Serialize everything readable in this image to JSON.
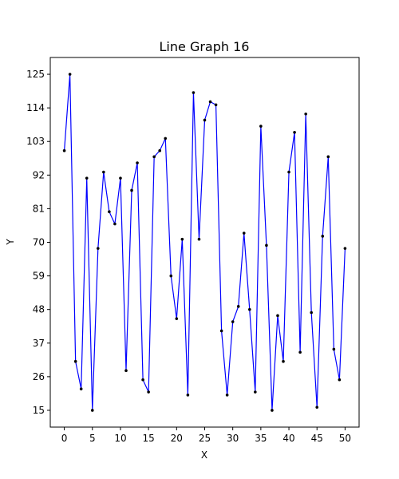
{
  "chart_data": {
    "type": "line",
    "title": "Line Graph 16",
    "xlabel": "X",
    "ylabel": "Y",
    "xlim": [
      -2.5,
      52.5
    ],
    "ylim": [
      9.5,
      130.5
    ],
    "x_ticks": [
      0,
      5,
      10,
      15,
      20,
      25,
      30,
      35,
      40,
      45,
      50
    ],
    "y_ticks": [
      15,
      26,
      37,
      48,
      59,
      70,
      81,
      92,
      103,
      114,
      125
    ],
    "grid": false,
    "legend": "none",
    "series": [
      {
        "color": "#0000ff",
        "marker_color": "#000000",
        "x": [
          0,
          1,
          2,
          3,
          4,
          5,
          6,
          7,
          8,
          9,
          10,
          11,
          12,
          13,
          14,
          15,
          16,
          17,
          18,
          19,
          20,
          21,
          22,
          23,
          24,
          25,
          26,
          27,
          28,
          29,
          30,
          31,
          32,
          33,
          34,
          35,
          36,
          37,
          38,
          39,
          40,
          41,
          42,
          43,
          44,
          45,
          46,
          47,
          48,
          49,
          50
        ],
        "y": [
          100,
          125,
          31,
          22,
          91,
          15,
          68,
          93,
          80,
          76,
          91,
          28,
          87,
          96,
          25,
          21,
          98,
          100,
          104,
          59,
          45,
          71,
          20,
          119,
          71,
          110,
          116,
          115,
          41,
          20,
          44,
          49,
          73,
          48,
          21,
          108,
          69,
          15,
          46,
          31,
          93,
          106,
          34,
          112,
          47,
          16,
          72,
          98,
          35,
          25,
          68
        ]
      }
    ]
  }
}
